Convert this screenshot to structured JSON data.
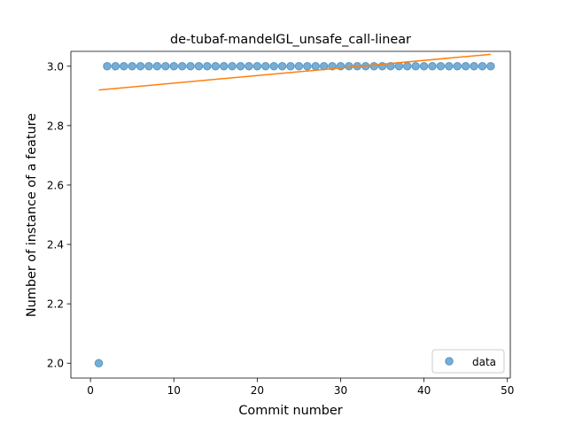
{
  "chart_data": {
    "type": "scatter",
    "title": "de-tubaf-mandelGL_unsafe_call-linear",
    "xlabel": "Commit number",
    "ylabel": "Number of instance of a feature",
    "xlim": [
      -2.35,
      50.35
    ],
    "ylim": [
      1.95,
      3.05
    ],
    "xticks": [
      0,
      10,
      20,
      30,
      40,
      50
    ],
    "yticks": [
      2.0,
      2.2,
      2.4,
      2.6,
      2.8,
      3.0
    ],
    "xtick_labels": [
      "0",
      "10",
      "20",
      "30",
      "40",
      "50"
    ],
    "ytick_labels": [
      "2.0",
      "2.2",
      "2.4",
      "2.6",
      "2.8",
      "3.0"
    ],
    "grid": false,
    "legend_position": "lower-right",
    "series": [
      {
        "name": "data",
        "kind": "scatter",
        "color": "#1f77b4",
        "x": [
          1,
          2,
          3,
          4,
          5,
          6,
          7,
          8,
          9,
          10,
          11,
          12,
          13,
          14,
          15,
          16,
          17,
          18,
          19,
          20,
          21,
          22,
          23,
          24,
          25,
          26,
          27,
          28,
          29,
          30,
          31,
          32,
          33,
          34,
          35,
          36,
          37,
          38,
          39,
          40,
          41,
          42,
          43,
          44,
          45,
          46,
          47,
          48
        ],
        "y": [
          2,
          3,
          3,
          3,
          3,
          3,
          3,
          3,
          3,
          3,
          3,
          3,
          3,
          3,
          3,
          3,
          3,
          3,
          3,
          3,
          3,
          3,
          3,
          3,
          3,
          3,
          3,
          3,
          3,
          3,
          3,
          3,
          3,
          3,
          3,
          3,
          3,
          3,
          3,
          3,
          3,
          3,
          3,
          3,
          3,
          3,
          3,
          3
        ]
      },
      {
        "kind": "line",
        "color": "#ff7f0e",
        "x": [
          1,
          48
        ],
        "y": [
          2.92,
          3.04
        ]
      }
    ]
  }
}
